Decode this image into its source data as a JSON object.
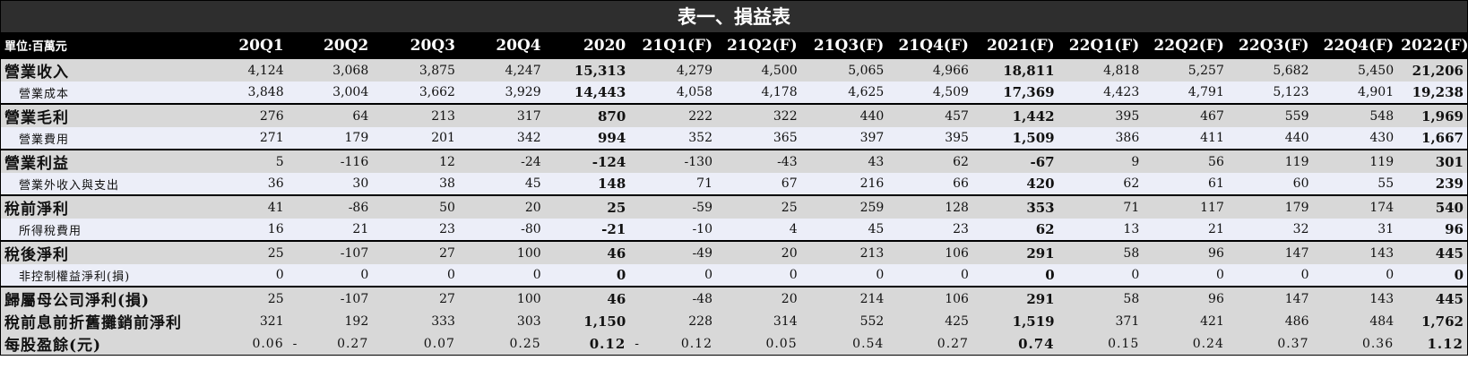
{
  "title": "表一、損益表",
  "unit_label": "單位:百萬元",
  "columns": [
    "20Q1",
    "20Q2",
    "20Q3",
    "20Q4",
    "2020",
    "21Q1(F)",
    "21Q2(F)",
    "21Q3(F)",
    "21Q4(F)",
    "2021(F)",
    "22Q1(F)",
    "22Q2(F)",
    "22Q3(F)",
    "22Q4(F)",
    "2022(F)"
  ],
  "bold_columns": [
    4,
    9,
    14
  ],
  "rows": [
    {
      "label": "營業收入",
      "type": "main",
      "group_start": true,
      "values": [
        "4,124",
        "3,068",
        "3,875",
        "4,247",
        "15,313",
        "4,279",
        "4,500",
        "5,065",
        "4,966",
        "18,811",
        "4,818",
        "5,257",
        "5,682",
        "5,450",
        "21,206"
      ]
    },
    {
      "label": "營業成本",
      "type": "sub",
      "group_start": false,
      "values": [
        "3,848",
        "3,004",
        "3,662",
        "3,929",
        "14,443",
        "4,058",
        "4,178",
        "4,625",
        "4,509",
        "17,369",
        "4,423",
        "4,791",
        "5,123",
        "4,901",
        "19,238"
      ]
    },
    {
      "label": "營業毛利",
      "type": "main",
      "group_start": true,
      "values": [
        "276",
        "64",
        "213",
        "317",
        "870",
        "222",
        "322",
        "440",
        "457",
        "1,442",
        "395",
        "467",
        "559",
        "548",
        "1,969"
      ]
    },
    {
      "label": "營業費用",
      "type": "sub",
      "group_start": false,
      "values": [
        "271",
        "179",
        "201",
        "342",
        "994",
        "352",
        "365",
        "397",
        "395",
        "1,509",
        "386",
        "411",
        "440",
        "430",
        "1,667"
      ]
    },
    {
      "label": "營業利益",
      "type": "main",
      "group_start": true,
      "values": [
        "5",
        "-116",
        "12",
        "-24",
        "-124",
        "-130",
        "-43",
        "43",
        "62",
        "-67",
        "9",
        "56",
        "119",
        "119",
        "301"
      ]
    },
    {
      "label": "營業外收入與支出",
      "type": "sub",
      "group_start": false,
      "values": [
        "36",
        "30",
        "38",
        "45",
        "148",
        "71",
        "67",
        "216",
        "66",
        "420",
        "62",
        "61",
        "60",
        "55",
        "239"
      ]
    },
    {
      "label": "稅前淨利",
      "type": "main",
      "group_start": true,
      "values": [
        "41",
        "-86",
        "50",
        "20",
        "25",
        "-59",
        "25",
        "259",
        "128",
        "353",
        "71",
        "117",
        "179",
        "174",
        "540"
      ]
    },
    {
      "label": "所得稅費用",
      "type": "sub",
      "group_start": false,
      "values": [
        "16",
        "21",
        "23",
        "-80",
        "-21",
        "-10",
        "4",
        "45",
        "23",
        "62",
        "13",
        "21",
        "32",
        "31",
        "96"
      ]
    },
    {
      "label": "稅後淨利",
      "type": "main",
      "group_start": true,
      "values": [
        "25",
        "-107",
        "27",
        "100",
        "46",
        "-49",
        "20",
        "213",
        "106",
        "291",
        "58",
        "96",
        "147",
        "143",
        "445"
      ]
    },
    {
      "label": "非控制權益淨利(損)",
      "type": "sub",
      "group_start": false,
      "values": [
        "0",
        "0",
        "0",
        "0",
        "0",
        "0",
        "0",
        "0",
        "0",
        "0",
        "0",
        "0",
        "0",
        "0",
        "0"
      ]
    },
    {
      "label": "歸屬母公司淨利(損)",
      "type": "main",
      "group_start": true,
      "values": [
        "25",
        "-107",
        "27",
        "100",
        "46",
        "-48",
        "20",
        "214",
        "106",
        "291",
        "58",
        "96",
        "147",
        "143",
        "445"
      ]
    },
    {
      "label": "稅前息前折舊攤銷前淨利",
      "type": "sub-main",
      "group_start": false,
      "values": [
        "321",
        "192",
        "333",
        "303",
        "1,150",
        "228",
        "314",
        "552",
        "425",
        "1,519",
        "371",
        "421",
        "486",
        "484",
        "1,762"
      ]
    },
    {
      "label": "每股盈餘(元)",
      "type": "main",
      "group_start": false,
      "values": [
        "0.06",
        "-0.27",
        "0.07",
        "0.25",
        "0.12",
        "-0.12",
        "0.05",
        "0.54",
        "0.27",
        "0.74",
        "0.15",
        "0.24",
        "0.37",
        "0.36",
        "1.12"
      ],
      "eps": true
    }
  ]
}
